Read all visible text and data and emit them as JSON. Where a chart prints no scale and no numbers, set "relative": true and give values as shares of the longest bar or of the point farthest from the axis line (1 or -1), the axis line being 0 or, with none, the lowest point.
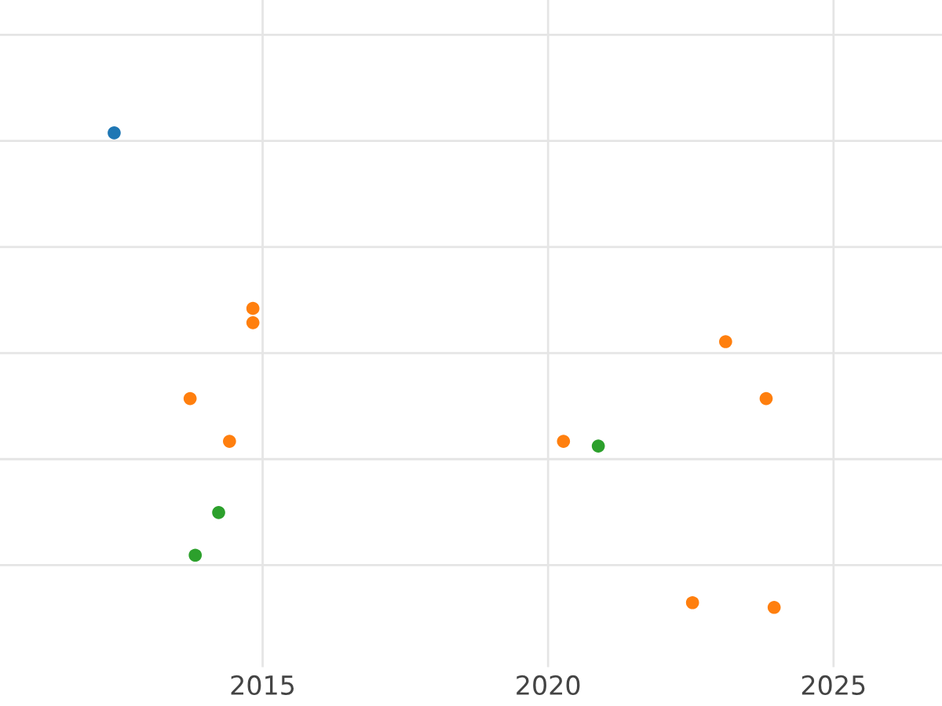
{
  "chart_data": {
    "type": "scatter",
    "relative": true,
    "grid": true,
    "marker": "circle",
    "tick_labels": "x",
    "xlim": [
      2010.4,
      2026.9
    ],
    "xticks": [
      2015,
      2020,
      2025
    ],
    "series": [
      {
        "color": "#1f77b4",
        "x": [
          2012.4
        ],
        "values": [
          1
        ]
      },
      {
        "color": "#ff7f0e",
        "x": [
          2014.83,
          2014.83,
          2013.73,
          2014.42,
          2020.27,
          2023.11,
          2023.82,
          2022.53,
          2023.96
        ],
        "values": [
          0.63,
          0.6,
          0.44,
          0.35,
          0.35,
          0.56,
          0.44,
          0.01,
          0
        ]
      },
      {
        "color": "#2ca02c",
        "x": [
          2014.23,
          2013.82,
          2020.88
        ],
        "values": [
          0.2,
          0.11,
          0.34
        ]
      }
    ]
  }
}
